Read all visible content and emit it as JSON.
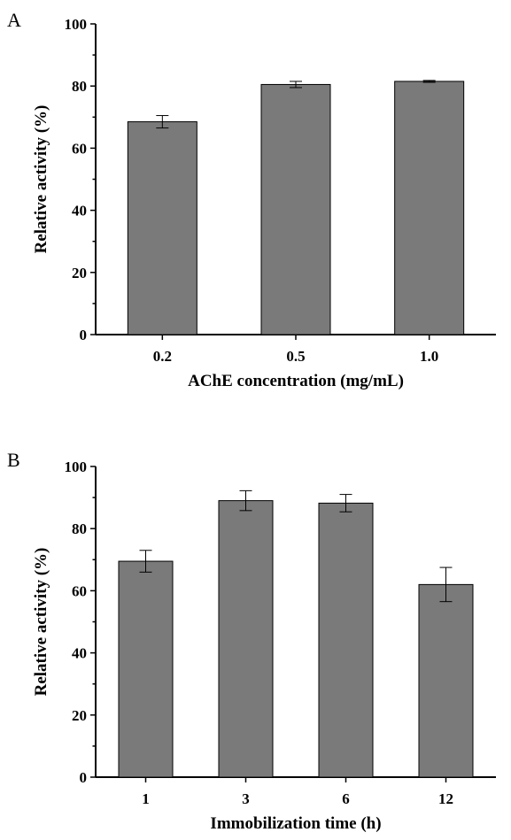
{
  "chart_data": [
    {
      "panel_label": "A",
      "type": "bar",
      "categories": [
        "0.2",
        "0.5",
        "1.0"
      ],
      "values": [
        68.5,
        80.5,
        81.5
      ],
      "errors": [
        2.0,
        1.0,
        0.3
      ],
      "xlabel": "AChE concentration (mg/mL)",
      "ylabel": "Relative activity (%)",
      "ylim": [
        0,
        100
      ],
      "yticks": [
        0,
        20,
        40,
        60,
        80,
        100
      ],
      "bar_color": "#7a7a7a",
      "grid": false
    },
    {
      "panel_label": "B",
      "type": "bar",
      "categories": [
        "1",
        "3",
        "6",
        "12"
      ],
      "values": [
        69.5,
        89.0,
        88.2,
        62.0
      ],
      "errors": [
        3.5,
        3.2,
        2.8,
        5.5
      ],
      "xlabel": "Immobilization time (h)",
      "ylabel": "Relative activity (%)",
      "ylim": [
        0,
        100
      ],
      "yticks": [
        0,
        20,
        40,
        60,
        80,
        100
      ],
      "bar_color": "#7a7a7a",
      "grid": false
    }
  ]
}
